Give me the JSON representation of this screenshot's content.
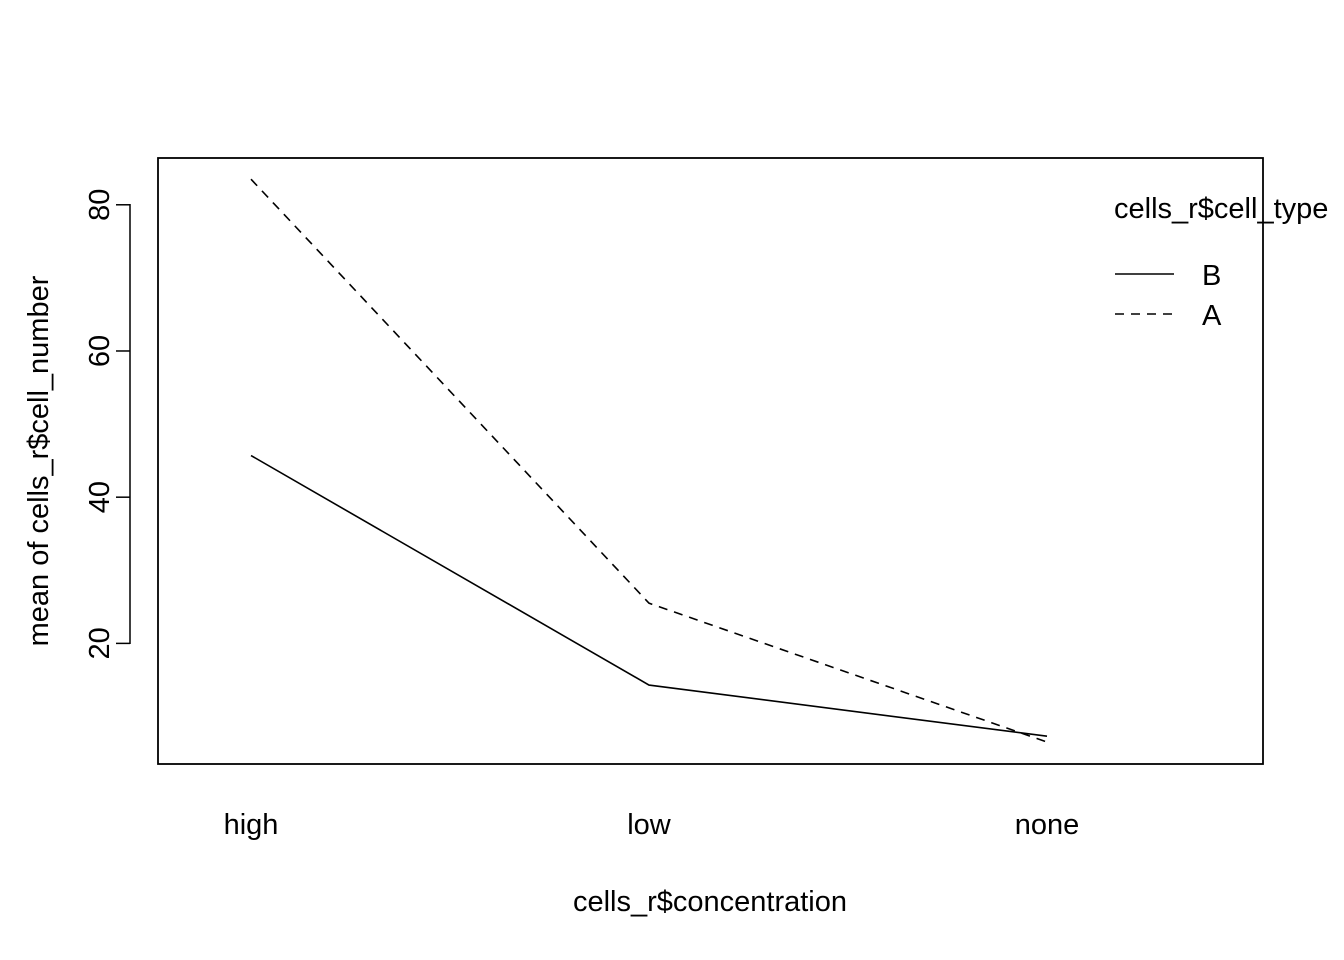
{
  "chart_data": {
    "type": "line",
    "title": "",
    "xlabel": "cells_r$concentration",
    "ylabel": "mean of  cells_r$cell_number",
    "categories": [
      "high",
      "low",
      "none"
    ],
    "ylim": [
      3.5,
      86.4
    ],
    "yticks": [
      20,
      40,
      60,
      80
    ],
    "grid": false,
    "legend": {
      "title": "cells_r$cell_type",
      "placement": "top-right"
    },
    "series": [
      {
        "name": "B",
        "line_style": "solid",
        "values": [
          45.7,
          14.3,
          7.3
        ]
      },
      {
        "name": "A",
        "line_style": "dashed",
        "values": [
          83.5,
          25.5,
          6.5
        ]
      }
    ]
  }
}
